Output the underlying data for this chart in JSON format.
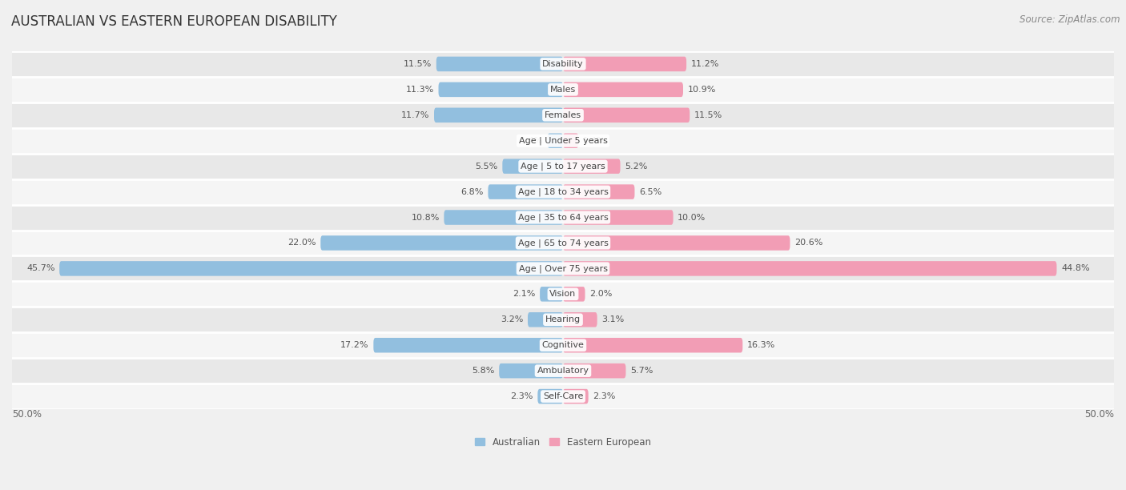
{
  "title": "AUSTRALIAN VS EASTERN EUROPEAN DISABILITY",
  "source": "Source: ZipAtlas.com",
  "categories": [
    "Disability",
    "Males",
    "Females",
    "Age | Under 5 years",
    "Age | 5 to 17 years",
    "Age | 18 to 34 years",
    "Age | 35 to 64 years",
    "Age | 65 to 74 years",
    "Age | Over 75 years",
    "Vision",
    "Hearing",
    "Cognitive",
    "Ambulatory",
    "Self-Care"
  ],
  "australian": [
    11.5,
    11.3,
    11.7,
    1.4,
    5.5,
    6.8,
    10.8,
    22.0,
    45.7,
    2.1,
    3.2,
    17.2,
    5.8,
    2.3
  ],
  "eastern_european": [
    11.2,
    10.9,
    11.5,
    1.4,
    5.2,
    6.5,
    10.0,
    20.6,
    44.8,
    2.0,
    3.1,
    16.3,
    5.7,
    2.3
  ],
  "australian_color": "#92bfdf",
  "eastern_european_color": "#f29db5",
  "australian_label": "Australian",
  "eastern_european_label": "Eastern European",
  "max_val": 50.0,
  "bar_height": 0.58,
  "bg_color": "#f0f0f0",
  "row_bg_even": "#e8e8e8",
  "row_bg_odd": "#f5f5f5",
  "row_separator": "#ffffff",
  "title_fontsize": 12,
  "label_fontsize": 8.5,
  "value_fontsize": 8.0,
  "source_fontsize": 8.5,
  "cat_label_fontsize": 8.0
}
